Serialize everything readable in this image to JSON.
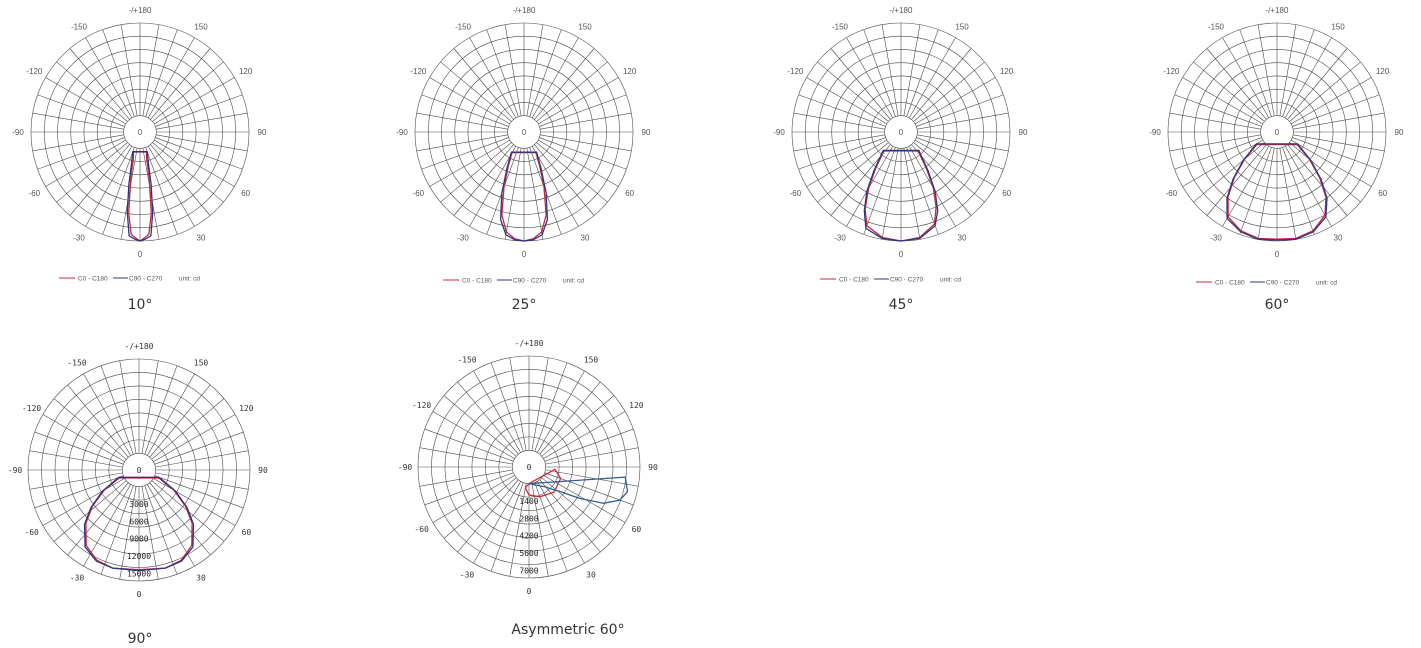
{
  "chart_data": [
    {
      "type": "polar",
      "caption": "10°",
      "angle_labels": [
        "-/+180",
        "150",
        "120",
        "90",
        "60",
        "30",
        "0",
        "-30",
        "-60",
        "-90",
        "-120",
        "-150"
      ],
      "center_label": "0",
      "radial_tick_labels": [],
      "legend": {
        "series": [
          "C0 - C180",
          "C90 - C270"
        ],
        "unit": "unit: cd"
      },
      "series": [
        {
          "name": "C0 - C180",
          "color": "#c8283c",
          "points": [
            [
              -5,
              0.93
            ],
            [
              -3,
              0.96
            ],
            [
              0,
              1
            ],
            [
              3,
              0.96
            ],
            [
              5,
              0.93
            ],
            [
              8,
              0.7
            ],
            [
              11,
              0.35
            ],
            [
              14,
              0.12
            ],
            [
              18,
              0.05
            ],
            [
              -18,
              0.05
            ],
            [
              -14,
              0.12
            ],
            [
              -11,
              0.35
            ],
            [
              -8,
              0.7
            ]
          ]
        },
        {
          "name": "C90 - C270",
          "color": "#2c3580",
          "points": [
            [
              -6,
              0.95
            ],
            [
              -3,
              0.98
            ],
            [
              0,
              1
            ],
            [
              3,
              0.98
            ],
            [
              6,
              0.95
            ],
            [
              9,
              0.7
            ],
            [
              12,
              0.4
            ],
            [
              15,
              0.18
            ],
            [
              20,
              0.05
            ],
            [
              -20,
              0.05
            ],
            [
              -15,
              0.18
            ],
            [
              -12,
              0.4
            ],
            [
              -9,
              0.7
            ]
          ]
        }
      ]
    },
    {
      "type": "polar",
      "caption": "25°",
      "angle_labels": [
        "-/+180",
        "150",
        "120",
        "90",
        "60",
        "30",
        "0",
        "-30",
        "-60",
        "-90",
        "-120",
        "-150"
      ],
      "center_label": "0",
      "radial_tick_labels": [],
      "legend": {
        "series": [
          "C0 - C180",
          "C90 - C270"
        ],
        "unit": "unit: cd"
      },
      "series": [
        {
          "name": "C0 - C180",
          "color": "#c8283c",
          "points": [
            [
              -10,
              0.92
            ],
            [
              -5,
              0.98
            ],
            [
              0,
              1
            ],
            [
              5,
              0.98
            ],
            [
              10,
              0.92
            ],
            [
              15,
              0.75
            ],
            [
              20,
              0.45
            ],
            [
              25,
              0.22
            ],
            [
              30,
              0.08
            ],
            [
              -30,
              0.08
            ],
            [
              -25,
              0.22
            ],
            [
              -20,
              0.45
            ],
            [
              -15,
              0.75
            ]
          ]
        },
        {
          "name": "C90 - C270",
          "color": "#2c3580",
          "points": [
            [
              -10,
              0.95
            ],
            [
              -5,
              0.99
            ],
            [
              0,
              1
            ],
            [
              5,
              0.99
            ],
            [
              10,
              0.95
            ],
            [
              15,
              0.8
            ],
            [
              20,
              0.52
            ],
            [
              25,
              0.26
            ],
            [
              32,
              0.08
            ],
            [
              -32,
              0.08
            ],
            [
              -25,
              0.26
            ],
            [
              -20,
              0.52
            ],
            [
              -15,
              0.8
            ]
          ]
        }
      ]
    },
    {
      "type": "polar",
      "caption": "45°",
      "angle_labels": [
        "-/+180",
        "150",
        "120",
        "90",
        "60",
        "30",
        "0",
        "-30",
        "-60",
        "-90",
        "-120",
        "-150"
      ],
      "center_label": "0",
      "radial_tick_labels": [],
      "legend": {
        "series": [
          "C0 - C180",
          "C90 - C270"
        ],
        "unit": "unit: cd"
      },
      "series": [
        {
          "name": "C0 - C180",
          "color": "#c8283c",
          "points": [
            [
              -20,
              0.9
            ],
            [
              -10,
              0.98
            ],
            [
              0,
              1
            ],
            [
              10,
              0.98
            ],
            [
              20,
              0.88
            ],
            [
              25,
              0.72
            ],
            [
              30,
              0.52
            ],
            [
              35,
              0.3
            ],
            [
              42,
              0.1
            ],
            [
              -42,
              0.1
            ],
            [
              -35,
              0.3
            ],
            [
              -30,
              0.52
            ],
            [
              -25,
              0.74
            ]
          ]
        },
        {
          "name": "C90 - C270",
          "color": "#2c3580",
          "points": [
            [
              -20,
              0.93
            ],
            [
              -10,
              0.99
            ],
            [
              0,
              1
            ],
            [
              10,
              0.99
            ],
            [
              20,
              0.9
            ],
            [
              25,
              0.76
            ],
            [
              30,
              0.56
            ],
            [
              35,
              0.33
            ],
            [
              44,
              0.1
            ],
            [
              -44,
              0.1
            ],
            [
              -35,
              0.33
            ],
            [
              -30,
              0.56
            ],
            [
              -25,
              0.76
            ]
          ]
        }
      ]
    },
    {
      "type": "polar",
      "caption": "60°",
      "angle_labels": [
        "-/+180",
        "150",
        "120",
        "90",
        "60",
        "30",
        "0",
        "-30",
        "-60",
        "-90",
        "-120",
        "-150"
      ],
      "center_label": "0",
      "radial_tick_labels": [],
      "legend": {
        "series": [
          "C0 - C180",
          "C90 - C270"
        ],
        "unit": "unit: cd"
      },
      "series": [
        {
          "name": "C0 - C180",
          "color": "#c8283c",
          "points": [
            [
              -30,
              0.88
            ],
            [
              -20,
              0.96
            ],
            [
              -10,
              0.99
            ],
            [
              0,
              0.98
            ],
            [
              10,
              0.99
            ],
            [
              20,
              0.96
            ],
            [
              30,
              0.86
            ],
            [
              37,
              0.7
            ],
            [
              43,
              0.5
            ],
            [
              50,
              0.28
            ],
            [
              58,
              0.08
            ],
            [
              -58,
              0.08
            ],
            [
              -50,
              0.28
            ],
            [
              -43,
              0.5
            ],
            [
              -37,
              0.7
            ]
          ]
        },
        {
          "name": "C90 - C270",
          "color": "#2c3580",
          "points": [
            [
              -30,
              0.9
            ],
            [
              -20,
              0.97
            ],
            [
              -10,
              1
            ],
            [
              0,
              0.99
            ],
            [
              10,
              1
            ],
            [
              20,
              0.97
            ],
            [
              30,
              0.88
            ],
            [
              37,
              0.72
            ],
            [
              43,
              0.52
            ],
            [
              50,
              0.3
            ],
            [
              60,
              0.08
            ],
            [
              -60,
              0.08
            ],
            [
              -50,
              0.3
            ],
            [
              -43,
              0.52
            ],
            [
              -37,
              0.72
            ]
          ]
        }
      ]
    },
    {
      "type": "polar",
      "caption": "90°",
      "angle_labels": [
        "-/+180",
        "150",
        "120",
        "90",
        "60",
        "30",
        "0",
        "-30",
        "-60",
        "-90",
        "-120",
        "-150"
      ],
      "center_label": "0",
      "radial_tick_labels": [
        "3000",
        "6000",
        "9000",
        "12000",
        "15000"
      ],
      "radial_max": 15000,
      "legend": null,
      "series": [
        {
          "name": "C0 - C180",
          "color": "#c8283c",
          "points": [
            [
              -35,
              0.8
            ],
            [
              -25,
              0.88
            ],
            [
              -15,
              0.9
            ],
            [
              0,
              0.88
            ],
            [
              15,
              0.9
            ],
            [
              25,
              0.88
            ],
            [
              35,
              0.8
            ],
            [
              45,
              0.62
            ],
            [
              52,
              0.45
            ],
            [
              60,
              0.25
            ],
            [
              68,
              0.05
            ],
            [
              -68,
              0.05
            ],
            [
              -60,
              0.25
            ],
            [
              -52,
              0.45
            ],
            [
              -45,
              0.62
            ]
          ]
        },
        {
          "name": "C90 - C270",
          "color": "#2c3580",
          "points": [
            [
              -35,
              0.82
            ],
            [
              -25,
              0.89
            ],
            [
              -15,
              0.9
            ],
            [
              0,
              0.89
            ],
            [
              15,
              0.9
            ],
            [
              25,
              0.89
            ],
            [
              35,
              0.82
            ],
            [
              45,
              0.64
            ],
            [
              52,
              0.47
            ],
            [
              60,
              0.27
            ],
            [
              70,
              0.05
            ],
            [
              -70,
              0.05
            ],
            [
              -60,
              0.27
            ],
            [
              -52,
              0.47
            ],
            [
              -45,
              0.64
            ]
          ]
        }
      ]
    },
    {
      "type": "polar",
      "caption": "Asymmetric 60°",
      "angle_labels": [
        "-/+180",
        "150",
        "120",
        "90",
        "60",
        "30",
        "0",
        "-30",
        "-60",
        "-90",
        "-120",
        "-150"
      ],
      "center_label": "0",
      "radial_tick_labels": [
        "1400",
        "2800",
        "4200",
        "5600",
        "7000"
      ],
      "radial_max": 7000,
      "legend": null,
      "series": [
        {
          "name": "C0 - C180",
          "color": "#c8283c",
          "points": [
            [
              0,
              0
            ],
            [
              85,
              0.1
            ],
            [
              70,
              0.18
            ],
            [
              45,
              0.2
            ],
            [
              20,
              0.16
            ],
            [
              0,
              0.12
            ],
            [
              -10,
              0.05
            ],
            [
              0,
              0
            ]
          ]
        },
        {
          "name": "C90 - C270",
          "color": "#2f5f8f",
          "points": [
            [
              0,
              0
            ],
            [
              84,
              0.85
            ],
            [
              76,
              0.9
            ],
            [
              70,
              0.85
            ],
            [
              64,
              0.7
            ],
            [
              58,
              0.45
            ],
            [
              52,
              0.25
            ],
            [
              45,
              0.15
            ],
            [
              40,
              0.1
            ],
            [
              0,
              0
            ]
          ]
        }
      ]
    }
  ]
}
